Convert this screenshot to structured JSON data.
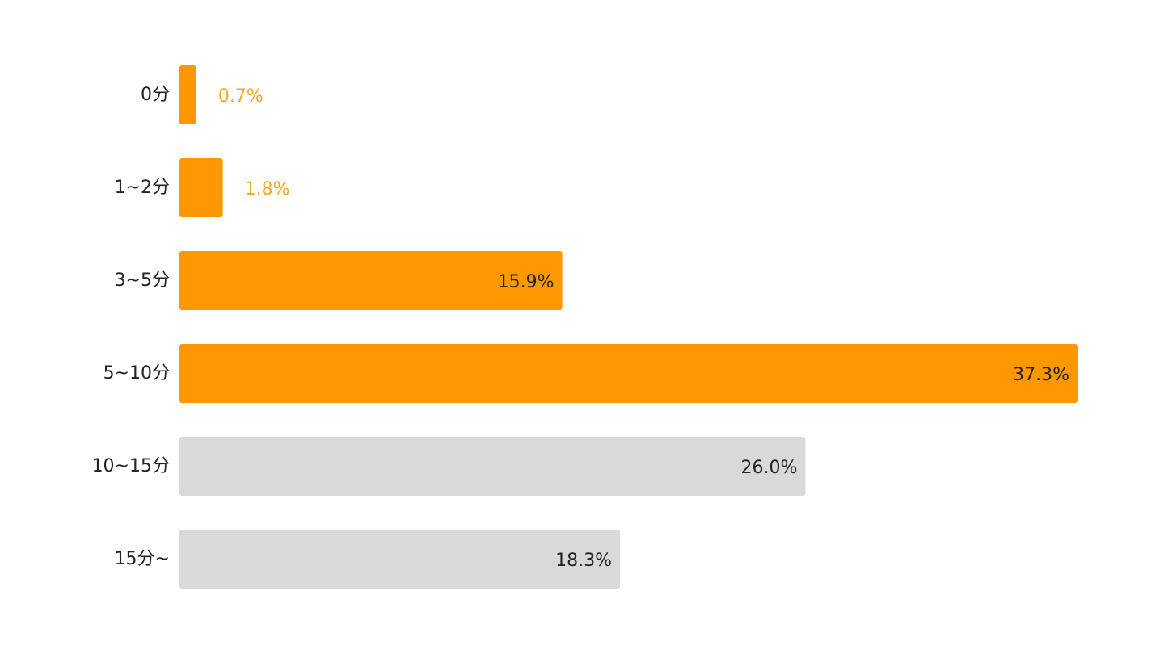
{
  "chart_data": {
    "type": "bar",
    "orientation": "horizontal",
    "categories": [
      "0分",
      "1~2分",
      "3~5分",
      "5~10分",
      "10~15分",
      "15分~"
    ],
    "values": [
      0.7,
      1.8,
      15.9,
      37.3,
      26.0,
      18.3
    ],
    "value_labels": [
      "0.7%",
      "1.8%",
      "15.9%",
      "37.3%",
      "26.0%",
      "18.3%"
    ],
    "highlighted": [
      true,
      true,
      true,
      true,
      false,
      false
    ],
    "title": "",
    "xlabel": "",
    "ylabel": "",
    "xlim": [
      0,
      37.3
    ],
    "grid": false,
    "legend": "none"
  },
  "colors": {
    "highlight": "#ff9800",
    "muted": "#d9d9d9",
    "label_dark": "#222222",
    "label_highlight": "#f5a623"
  }
}
